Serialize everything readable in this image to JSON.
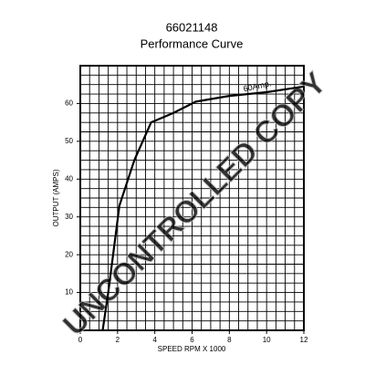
{
  "chart_data": {
    "type": "line",
    "title": "66021148",
    "subtitle": "Performance Curve",
    "x_label": "SPEED RPM X 1000",
    "y_label": "OUTPUT (AMPS)",
    "annotation": "60Amp.",
    "watermark": "UNCONTROLLED COPY",
    "x": [
      1.2,
      1.5,
      2.1,
      2.9,
      3.8,
      5,
      6.2,
      8,
      10,
      12
    ],
    "series": [
      {
        "name": "Output",
        "color": "#000000",
        "values": [
          0,
          10,
          33,
          45,
          55,
          57.5,
          60.5,
          62,
          63,
          64.5
        ]
      }
    ],
    "xlim": [
      0,
      12
    ],
    "xticks": [
      0,
      2,
      4,
      6,
      8,
      10,
      12
    ],
    "ylim": [
      0,
      70
    ],
    "yticks": [
      10,
      20,
      30,
      40,
      50,
      60
    ],
    "grid": true,
    "minor_grid": {
      "x": 0.5,
      "y": 2.5
    }
  }
}
